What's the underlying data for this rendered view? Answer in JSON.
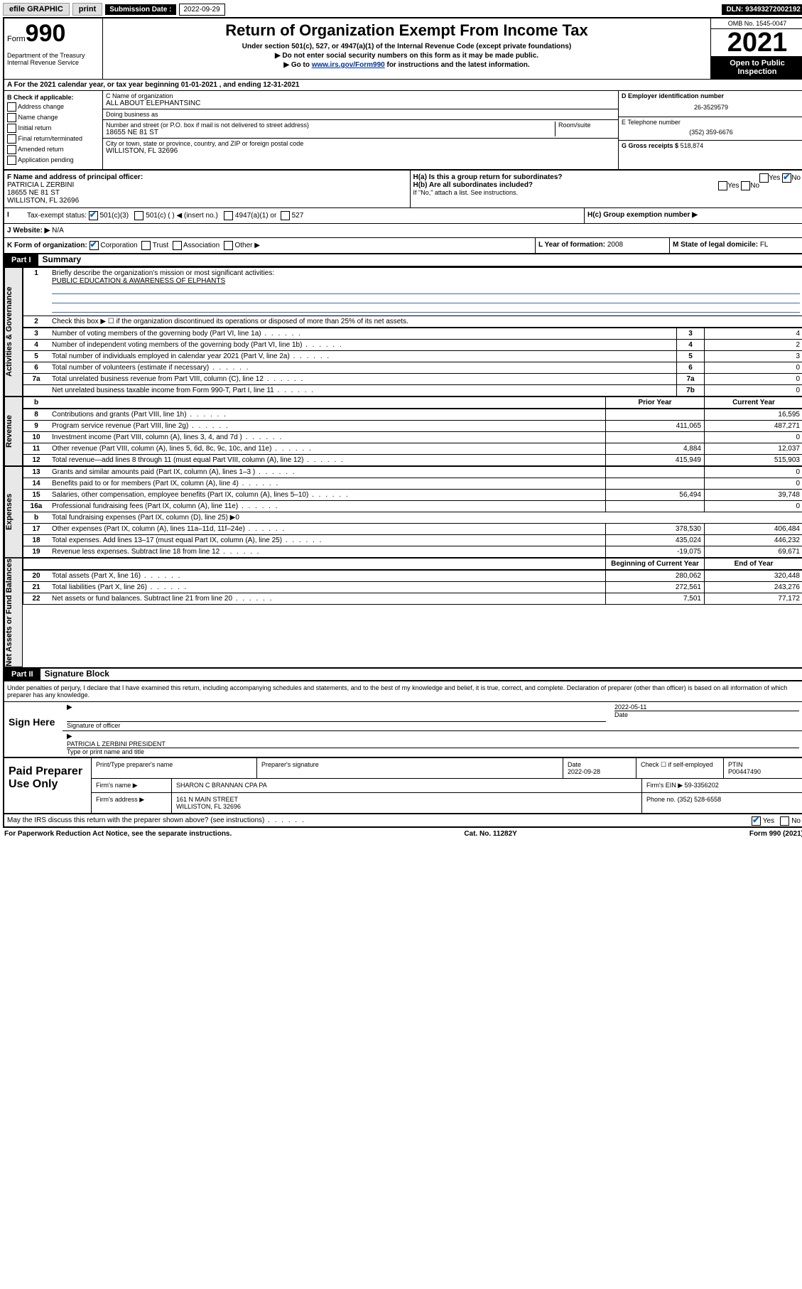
{
  "topbar": {
    "efile": "efile GRAPHIC",
    "print": "print",
    "sub_label": "Submission Date :",
    "sub_date": "2022-09-29",
    "dln": "DLN: 93493272002192"
  },
  "header": {
    "form_small": "Form",
    "form_big": "990",
    "title": "Return of Organization Exempt From Income Tax",
    "sub1": "Under section 501(c), 527, or 4947(a)(1) of the Internal Revenue Code (except private foundations)",
    "sub2": "▶ Do not enter social security numbers on this form as it may be made public.",
    "sub3_pre": "▶ Go to ",
    "sub3_link": "www.irs.gov/Form990",
    "sub3_post": " for instructions and the latest information.",
    "dept": "Department of the Treasury Internal Revenue Service",
    "omb": "OMB No. 1545-0047",
    "year": "2021",
    "open": "Open to Public Inspection"
  },
  "rowA": {
    "text_pre": "A For the 2021 calendar year, or tax year beginning ",
    "begin": "01-01-2021",
    "mid": " , and ending ",
    "end": "12-31-2021"
  },
  "colB": {
    "title": "B Check if applicable:",
    "opts": [
      "Address change",
      "Name change",
      "Initial return",
      "Final return/terminated",
      "Amended return",
      "Application pending"
    ]
  },
  "colC": {
    "name_label": "C Name of organization",
    "name": "ALL ABOUT ELEPHANTSINC",
    "dba_label": "Doing business as",
    "dba": "",
    "addr_label": "Number and street (or P.O. box if mail is not delivered to street address)",
    "room_label": "Room/suite",
    "addr": "18655 NE 81 ST",
    "city_label": "City or town, state or province, country, and ZIP or foreign postal code",
    "city": "WILLISTON, FL  32696"
  },
  "colD": {
    "label": "D Employer identification number",
    "val": "26-3529579"
  },
  "colE": {
    "label": "E Telephone number",
    "val": "(352) 359-6676"
  },
  "colG": {
    "label": "G Gross receipts $",
    "val": "518,874"
  },
  "rowF": {
    "label": "F Name and address of principal officer:",
    "name": "PATRICIA L ZERBINI",
    "addr1": "18655 NE 81 ST",
    "addr2": "WILLISTON, FL  32696"
  },
  "rowH": {
    "ha": "H(a)  Is this a group return for subordinates?",
    "hb": "H(b)  Are all subordinates included?",
    "hb_note": "If \"No,\" attach a list. See instructions.",
    "hc": "H(c)  Group exemption number ▶",
    "yes": "Yes",
    "no": "No"
  },
  "rowI": {
    "label": "Tax-exempt status:",
    "c3": "501(c)(3)",
    "c": "501(c) (   ) ◀ (insert no.)",
    "a1": "4947(a)(1) or",
    "s527": "527"
  },
  "rowJ": {
    "label": "J Website: ▶",
    "val": "N/A"
  },
  "rowK": {
    "label": "K Form of organization:",
    "corp": "Corporation",
    "trust": "Trust",
    "assoc": "Association",
    "other": "Other ▶"
  },
  "rowL": {
    "label": "L Year of formation:",
    "val": "2008"
  },
  "rowM": {
    "label": "M State of legal domicile:",
    "val": "FL"
  },
  "part1": {
    "hdr": "Part I",
    "title": "Summary",
    "q1": "Briefly describe the organization's mission or most significant activities:",
    "q1val": "PUBLIC EDUCATION & AWARENESS OF ELPHANTS",
    "q2": "Check this box ▶ ☐ if the organization discontinued its operations or disposed of more than 25% of its net assets.",
    "rows_gov": [
      {
        "n": "3",
        "d": "Number of voting members of the governing body (Part VI, line 1a)",
        "b": "3",
        "v": "4"
      },
      {
        "n": "4",
        "d": "Number of independent voting members of the governing body (Part VI, line 1b)",
        "b": "4",
        "v": "2"
      },
      {
        "n": "5",
        "d": "Total number of individuals employed in calendar year 2021 (Part V, line 2a)",
        "b": "5",
        "v": "3"
      },
      {
        "n": "6",
        "d": "Total number of volunteers (estimate if necessary)",
        "b": "6",
        "v": "0"
      },
      {
        "n": "7a",
        "d": "Total unrelated business revenue from Part VIII, column (C), line 12",
        "b": "7a",
        "v": "0"
      },
      {
        "n": "",
        "d": "Net unrelated business taxable income from Form 990-T, Part I, line 11",
        "b": "7b",
        "v": "0"
      }
    ],
    "hdr_prior": "Prior Year",
    "hdr_curr": "Current Year",
    "rows_rev": [
      {
        "n": "8",
        "d": "Contributions and grants (Part VIII, line 1h)",
        "p": "",
        "c": "16,595"
      },
      {
        "n": "9",
        "d": "Program service revenue (Part VIII, line 2g)",
        "p": "411,065",
        "c": "487,271"
      },
      {
        "n": "10",
        "d": "Investment income (Part VIII, column (A), lines 3, 4, and 7d )",
        "p": "",
        "c": "0"
      },
      {
        "n": "11",
        "d": "Other revenue (Part VIII, column (A), lines 5, 6d, 8c, 9c, 10c, and 11e)",
        "p": "4,884",
        "c": "12,037"
      },
      {
        "n": "12",
        "d": "Total revenue—add lines 8 through 11 (must equal Part VIII, column (A), line 12)",
        "p": "415,949",
        "c": "515,903"
      }
    ],
    "rows_exp": [
      {
        "n": "13",
        "d": "Grants and similar amounts paid (Part IX, column (A), lines 1–3 )",
        "p": "",
        "c": "0"
      },
      {
        "n": "14",
        "d": "Benefits paid to or for members (Part IX, column (A), line 4)",
        "p": "",
        "c": "0"
      },
      {
        "n": "15",
        "d": "Salaries, other compensation, employee benefits (Part IX, column (A), lines 5–10)",
        "p": "56,494",
        "c": "39,748"
      },
      {
        "n": "16a",
        "d": "Professional fundraising fees (Part IX, column (A), line 11e)",
        "p": "",
        "c": "0"
      },
      {
        "n": "b",
        "d": "Total fundraising expenses (Part IX, column (D), line 25) ▶0",
        "p": null,
        "c": null
      },
      {
        "n": "17",
        "d": "Other expenses (Part IX, column (A), lines 11a–11d, 11f–24e)",
        "p": "378,530",
        "c": "406,484"
      },
      {
        "n": "18",
        "d": "Total expenses. Add lines 13–17 (must equal Part IX, column (A), line 25)",
        "p": "435,024",
        "c": "446,232"
      },
      {
        "n": "19",
        "d": "Revenue less expenses. Subtract line 18 from line 12",
        "p": "-19,075",
        "c": "69,671"
      }
    ],
    "hdr_begin": "Beginning of Current Year",
    "hdr_end": "End of Year",
    "rows_net": [
      {
        "n": "20",
        "d": "Total assets (Part X, line 16)",
        "p": "280,062",
        "c": "320,448"
      },
      {
        "n": "21",
        "d": "Total liabilities (Part X, line 26)",
        "p": "272,561",
        "c": "243,276"
      },
      {
        "n": "22",
        "d": "Net assets or fund balances. Subtract line 21 from line 20",
        "p": "7,501",
        "c": "77,172"
      }
    ],
    "side_gov": "Activities & Governance",
    "side_rev": "Revenue",
    "side_exp": "Expenses",
    "side_net": "Net Assets or Fund Balances"
  },
  "part2": {
    "hdr": "Part II",
    "title": "Signature Block",
    "decl": "Under penalties of perjury, I declare that I have examined this return, including accompanying schedules and statements, and to the best of my knowledge and belief, it is true, correct, and complete. Declaration of preparer (other than officer) is based on all information of which preparer has any knowledge."
  },
  "sign": {
    "left": "Sign Here",
    "sig_label": "Signature of officer",
    "date_label": "Date",
    "date": "2022-05-11",
    "name": "PATRICIA L ZERBINI PRESIDENT",
    "name_label": "Type or print name and title"
  },
  "prep": {
    "left": "Paid Preparer Use Only",
    "h_name": "Print/Type preparer's name",
    "h_sig": "Preparer's signature",
    "h_date": "Date",
    "date": "2022-09-28",
    "h_check": "Check ☐ if self-employed",
    "h_ptin": "PTIN",
    "ptin": "P00447490",
    "firm_name_l": "Firm's name     ▶",
    "firm_name": "SHARON C BRANNAN CPA PA",
    "firm_ein_l": "Firm's EIN ▶",
    "firm_ein": "59-3356202",
    "firm_addr_l": "Firm's address ▶",
    "firm_addr1": "161 N MAIN STREET",
    "firm_addr2": "WILLISTON, FL  32696",
    "phone_l": "Phone no.",
    "phone": "(352) 528-6558"
  },
  "discuss": {
    "q": "May the IRS discuss this return with the preparer shown above? (see instructions)",
    "yes": "Yes",
    "no": "No"
  },
  "footer": {
    "left": "For Paperwork Reduction Act Notice, see the separate instructions.",
    "mid": "Cat. No. 11282Y",
    "right": "Form 990 (2021)"
  }
}
